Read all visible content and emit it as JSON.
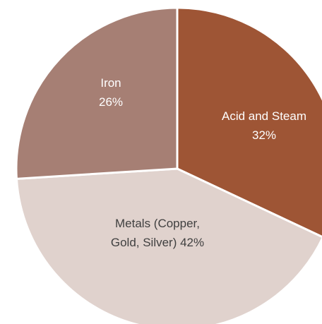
{
  "chart_data": {
    "type": "pie",
    "start_angle_deg": 0,
    "direction": "clockwise",
    "slices": [
      {
        "label_lines": [
          "Acid and Steam",
          "32%"
        ],
        "value": 32,
        "color": "#9E5535",
        "label_color": "#ffffff"
      },
      {
        "label_lines": [
          "Metals (Copper,",
          "Gold, Silver) 42%"
        ],
        "value": 42,
        "color": "#E0D2CD",
        "label_color": "#404040"
      },
      {
        "label_lines": [
          "Iron",
          "26%"
        ],
        "value": 26,
        "color": "#A67F74",
        "label_color": "#ffffff"
      }
    ],
    "title": "",
    "legend": "none"
  }
}
